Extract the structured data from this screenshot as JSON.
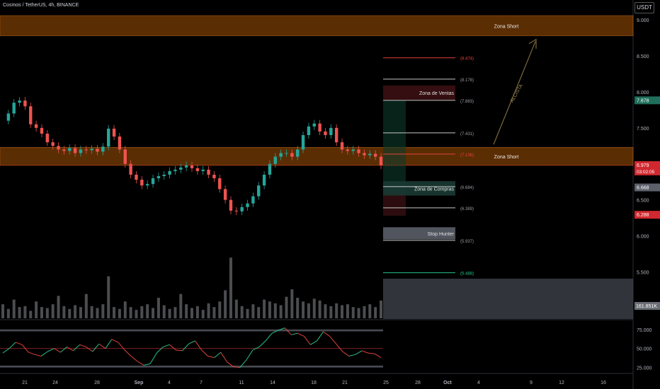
{
  "header": {
    "symbol": "Cosmos / TetherUS, 4h, BINANCE",
    "currency": "USDT"
  },
  "chart_data": {
    "type": "candlestick",
    "price_axis": {
      "ticks": [
        "9.000",
        "8.500",
        "8.000",
        "7.500",
        "7.000",
        "6.500",
        "6.000",
        "5.500"
      ],
      "ylim": [
        5.15,
        9.1
      ]
    },
    "rsi_axis": {
      "ticks": [
        "75.000",
        "50.000",
        "25.000"
      ],
      "ylim": [
        20,
        85
      ]
    },
    "x_ticks": [
      "21",
      "24",
      "28",
      "Sep",
      "4",
      "7",
      "11",
      "14",
      "18",
      "21",
      "25",
      "28",
      "Oct",
      "4",
      "9",
      "12",
      "16"
    ],
    "price_badges": [
      {
        "label": "7.878",
        "value": 7.878,
        "color": "#1f6f5c"
      },
      {
        "label": "6.979",
        "sublabel": "03:02:05",
        "value": 6.979,
        "color": "#d1282f"
      },
      {
        "label": "6.668",
        "value": 6.668,
        "color": "#5d606b"
      },
      {
        "label": "6.288",
        "value": 6.288,
        "color": "#d1282f"
      }
    ],
    "volume_badge": "161.851K",
    "zones": [
      {
        "label": "Zona Short",
        "from": 8.78,
        "to": 9.06
      },
      {
        "label": "Zona Short",
        "from": 6.98,
        "to": 7.23
      }
    ],
    "fib_levels": [
      {
        "label": "(8.474)",
        "value": 8.474,
        "color": "#e0433a"
      },
      {
        "label": "(8.178)",
        "value": 8.178,
        "color": "#c8c8c8"
      },
      {
        "label": "(7.883)",
        "value": 7.883,
        "color": "#c8c8c8"
      },
      {
        "label": "(7.431)",
        "value": 7.431,
        "color": "#c8c8c8"
      },
      {
        "label": "(7.136)",
        "value": 7.136,
        "color": "#e0433a"
      },
      {
        "label": "(6.684)",
        "value": 6.684,
        "color": "#c8c8c8"
      },
      {
        "label": "(6.389)",
        "value": 6.389,
        "color": "#c8c8c8"
      },
      {
        "label": "(5.937)",
        "value": 5.937,
        "color": "#c8c8c8"
      },
      {
        "label": "(5.488)",
        "value": 5.488,
        "color": "#26c28a"
      }
    ],
    "labeled_boxes": [
      {
        "label": "Zona de Ventas",
        "from": 7.89,
        "to": 8.09
      },
      {
        "label": "Zona de Compras",
        "from": 6.56,
        "to": 6.76
      },
      {
        "label": "Stop Hunter",
        "from": 5.95,
        "to": 6.12
      }
    ],
    "arrow_label": "ALCISTA",
    "price_series": [
      7.6,
      7.7,
      7.85,
      7.88,
      7.8,
      7.55,
      7.5,
      7.42,
      7.3,
      7.25,
      7.2,
      7.18,
      7.22,
      7.15,
      7.2,
      7.19,
      7.21,
      7.17,
      7.24,
      7.49,
      7.38,
      7.2,
      7.0,
      6.85,
      6.78,
      6.7,
      6.72,
      6.8,
      6.83,
      6.85,
      6.9,
      6.92,
      6.95,
      6.98,
      6.94,
      6.9,
      6.92,
      6.85,
      6.8,
      6.65,
      6.5,
      6.35,
      6.34,
      6.4,
      6.45,
      6.55,
      6.7,
      6.85,
      7.0,
      7.1,
      7.15,
      7.15,
      7.1,
      7.2,
      7.4,
      7.52,
      7.56,
      7.45,
      7.4,
      7.5,
      7.3,
      7.2,
      7.18,
      7.2,
      7.15,
      7.12,
      7.14,
      7.1,
      6.98
    ],
    "volume_series": [
      1.5,
      1,
      2,
      1.2,
      1.3,
      0.8,
      1.8,
      1.2,
      1.1,
      1.5,
      2.4,
      1.3,
      1.0,
      1.4,
      1.2,
      2.6,
      1.3,
      1.1,
      1.5,
      4.5,
      1.2,
      1.0,
      1.8,
      1.2,
      0.9,
      1.3,
      1.5,
      1.1,
      2.2,
      1.4,
      1.0,
      1.2,
      2.6,
      1.5,
      1.1,
      1.3,
      0.9,
      1.6,
      1.2,
      1.8,
      3.0,
      6.5,
      2.0,
      1.3,
      1.0,
      1.5,
      1.2,
      2.0,
      1.8,
      1.6,
      1.4,
      2.3,
      3.1,
      2.2,
      1.8,
      1.6,
      2.1,
      1.9,
      1.5,
      1.3,
      1.6,
      1.4,
      1.5,
      1.2,
      1.1,
      1.3,
      1.5,
      1.2,
      1.9
    ],
    "rsi_series": [
      44,
      50,
      58,
      55,
      45,
      42,
      40,
      46,
      50,
      45,
      52,
      47,
      55,
      52,
      46,
      56,
      50,
      62,
      58,
      48,
      40,
      33,
      28,
      30,
      44,
      52,
      55,
      48,
      47,
      56,
      60,
      48,
      40,
      38,
      45,
      32,
      26,
      25,
      35,
      48,
      52,
      60,
      70,
      74,
      77,
      68,
      70,
      66,
      55,
      60,
      72,
      66,
      56,
      46,
      40,
      42,
      47,
      44,
      43,
      38
    ]
  }
}
